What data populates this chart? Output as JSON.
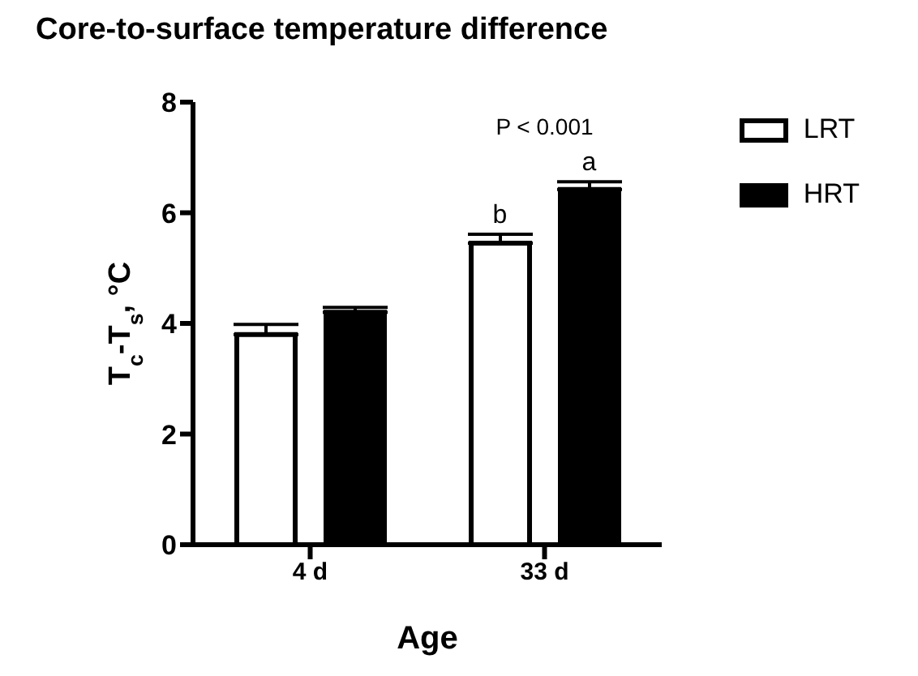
{
  "chart_data": {
    "type": "bar",
    "title": "Core-to-surface temperature difference",
    "xlabel": "Age",
    "ylabel": "T$_{c}$-T$_{s}$, °C",
    "categories": [
      "4 d",
      "33 d"
    ],
    "series": [
      {
        "name": "LRT",
        "color": "#ffffff",
        "values": [
          3.8,
          5.45
        ],
        "errors": [
          0.18,
          0.16
        ]
      },
      {
        "name": "HRT",
        "color": "#000000",
        "values": [
          4.2,
          6.42
        ],
        "errors": [
          0.09,
          0.14
        ]
      }
    ],
    "ylim": [
      0,
      8
    ],
    "yticks": [
      0,
      2,
      4,
      6,
      8
    ],
    "grid": false,
    "legend": "top right",
    "annotations": [
      "P < 0.001",
      "b",
      "a"
    ]
  }
}
